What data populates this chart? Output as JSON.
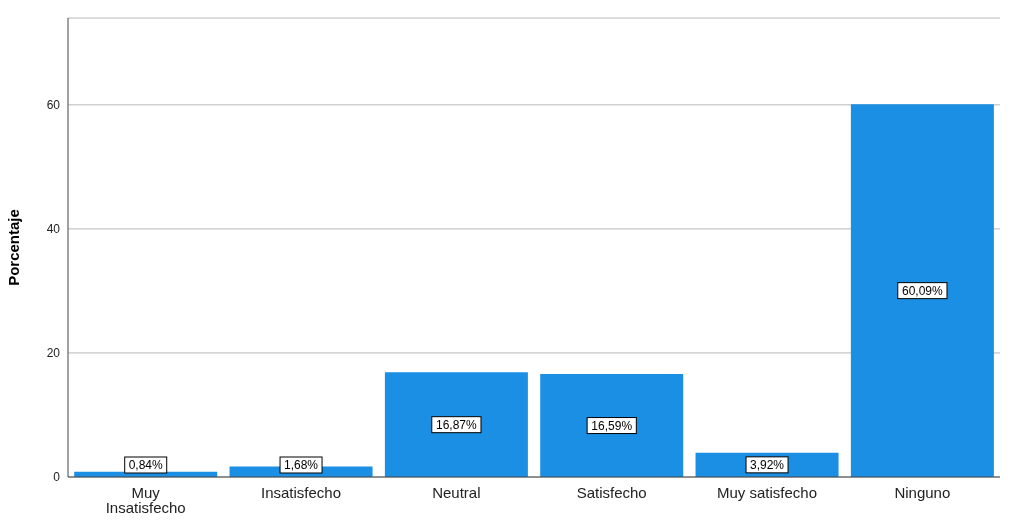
{
  "chart_data": {
    "type": "bar",
    "ylabel": "Porcentaje",
    "categories": [
      "Muy Insatisfecho",
      "Insatisfecho",
      "Neutral",
      "Satisfecho",
      "Muy satisfecho",
      "Ninguno"
    ],
    "values": [
      0.84,
      1.68,
      16.87,
      16.59,
      3.92,
      60.09
    ],
    "value_labels": [
      "0,84%",
      "1,68%",
      "16,87%",
      "16,59%",
      "3,92%",
      "60,09%"
    ],
    "color": "#1a8fe3",
    "ylim": [
      0,
      74
    ],
    "yticks": [
      0,
      20,
      40,
      60
    ],
    "grid": "y"
  }
}
